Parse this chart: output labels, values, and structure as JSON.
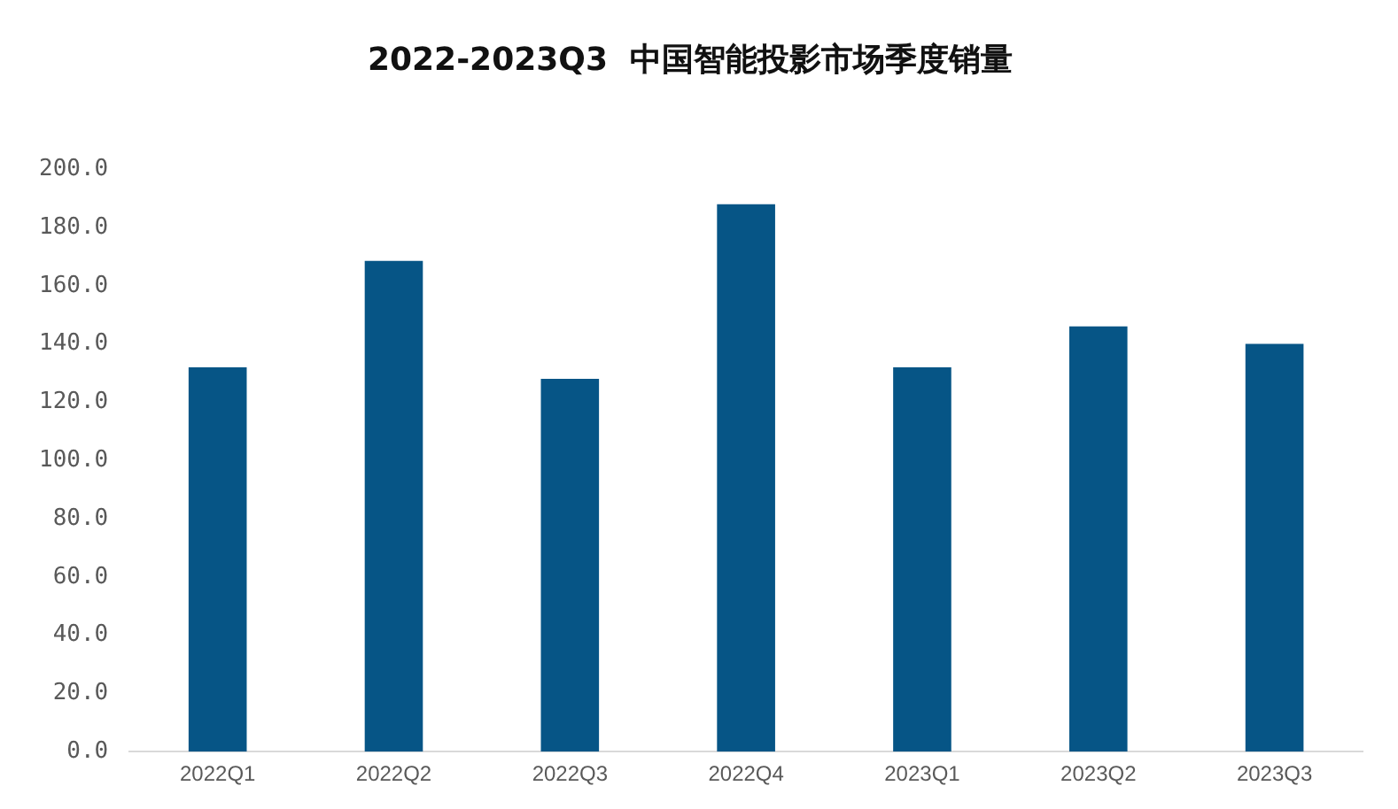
{
  "chart_data": {
    "type": "bar",
    "title": "2022-2023Q3  中国智能投影市场季度销量",
    "categories": [
      "2022Q1",
      "2022Q2",
      "2022Q3",
      "2022Q4",
      "2023Q1",
      "2023Q2",
      "2023Q3"
    ],
    "values": [
      132,
      168.5,
      128,
      188,
      132,
      146,
      140
    ],
    "color": "#065586",
    "ylim": [
      0,
      200
    ],
    "yticks": [
      {
        "value": 0,
        "label": "0.0"
      },
      {
        "value": 20,
        "label": "20.0"
      },
      {
        "value": 40,
        "label": "40.0"
      },
      {
        "value": 60,
        "label": "60.0"
      },
      {
        "value": 80,
        "label": "80.0"
      },
      {
        "value": 100,
        "label": "100.0"
      },
      {
        "value": 120,
        "label": "120.0"
      },
      {
        "value": 140,
        "label": "140.0"
      },
      {
        "value": 160,
        "label": "160.0"
      },
      {
        "value": 180,
        "label": "180.0"
      },
      {
        "value": 200,
        "label": "200.0"
      }
    ],
    "grid": false,
    "legend": false
  }
}
